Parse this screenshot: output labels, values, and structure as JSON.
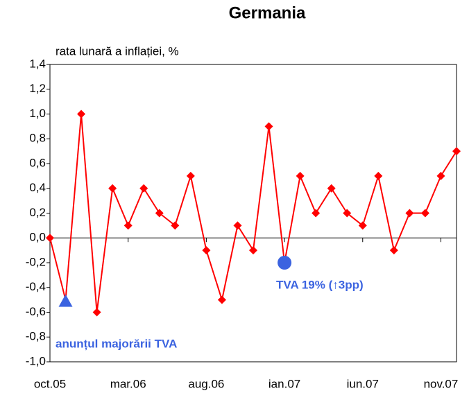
{
  "chart_data": {
    "type": "line",
    "title": "Germania",
    "y_label": "rata lunară a inflației, %",
    "categories": [
      "oct.05",
      null,
      null,
      null,
      null,
      "mar.06",
      null,
      null,
      null,
      null,
      "aug.06",
      null,
      null,
      null,
      null,
      "ian.07",
      null,
      null,
      null,
      null,
      "iun.07",
      null,
      null,
      null,
      null,
      "nov.07",
      null
    ],
    "series": [
      {
        "name": "Germania",
        "color": "#ff0000",
        "values": [
          0.0,
          -0.5,
          1.0,
          -0.6,
          0.4,
          0.1,
          0.4,
          0.2,
          0.1,
          0.5,
          -0.1,
          -0.5,
          0.1,
          -0.1,
          0.9,
          -0.2,
          0.5,
          0.2,
          0.4,
          0.2,
          0.1,
          0.5,
          -0.1,
          0.2,
          0.2,
          0.5,
          0.7
        ]
      }
    ],
    "highlights": [
      {
        "index": 1,
        "shape": "triangle",
        "color": "#3b63e0"
      },
      {
        "index": 15,
        "shape": "circle",
        "color": "#3b63e0"
      }
    ],
    "annotations": [
      "anunțul majorării TVA",
      "TVA 19% (↑3pp)"
    ],
    "ylim": [
      -1.0,
      1.4
    ],
    "yticks": [
      {
        "value": -1.0,
        "label": "-1,0"
      },
      {
        "value": -0.8,
        "label": "-0,8"
      },
      {
        "value": -0.6,
        "label": "-0,6"
      },
      {
        "value": -0.4,
        "label": "-0,4"
      },
      {
        "value": -0.2,
        "label": "-0,2"
      },
      {
        "value": 0.0,
        "label": "0,0"
      },
      {
        "value": 0.2,
        "label": "0,2"
      },
      {
        "value": 0.4,
        "label": "0,4"
      },
      {
        "value": 0.6,
        "label": "0,6"
      },
      {
        "value": 0.8,
        "label": "0,8"
      },
      {
        "value": 1.0,
        "label": "1,0"
      },
      {
        "value": 1.2,
        "label": "1,2"
      },
      {
        "value": 1.4,
        "label": "1,4"
      }
    ],
    "grid": false
  }
}
